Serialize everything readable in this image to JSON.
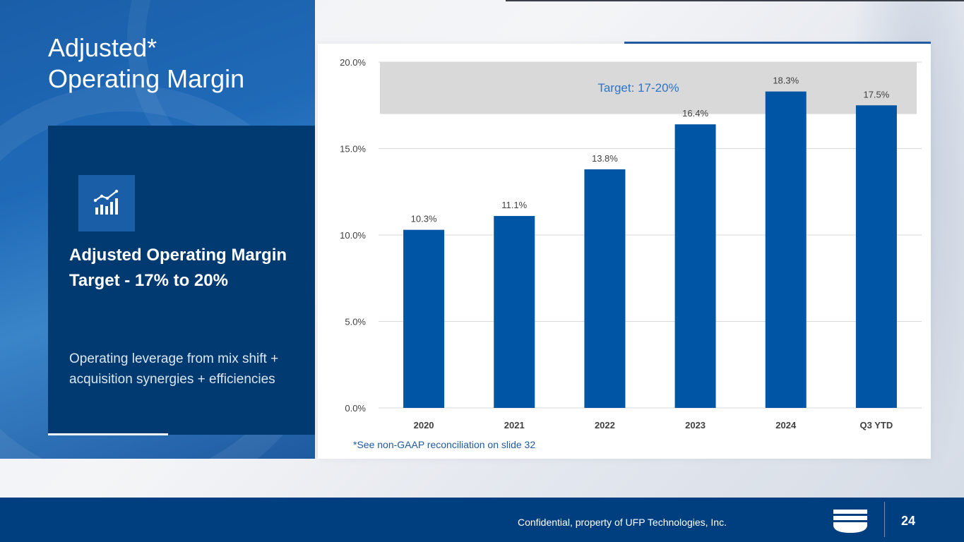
{
  "slide": {
    "title": "Adjusted*\nOperating Margin",
    "box_heading": "Adjusted Operating Margin Target - 17% to 20%",
    "box_text": "Operating leverage from mix shift + acquisition synergies + efficiencies",
    "icon": "bar-chart-trend-icon",
    "footnote": "*See non-GAAP reconciliation on slide 32"
  },
  "footer": {
    "text": "Confidential, property of UFP Technologies, Inc.",
    "page_number": "24",
    "logo": "ufp-logo-icon"
  },
  "colors": {
    "bar": "#0055a5",
    "target_band": "#d9d9d9",
    "target_label": "#2e74c7",
    "footer_bg": "#003f7f",
    "panel_dark": "#003a70"
  },
  "chart_data": {
    "type": "bar",
    "categories": [
      "2020",
      "2021",
      "2022",
      "2023",
      "2024",
      "Q3 YTD"
    ],
    "values": [
      10.3,
      11.1,
      13.8,
      16.4,
      18.3,
      17.5
    ],
    "value_labels": [
      "10.3%",
      "11.1%",
      "13.8%",
      "16.4%",
      "18.3%",
      "17.5%"
    ],
    "y_ticks": [
      0,
      5,
      10,
      15,
      20
    ],
    "y_tick_labels": [
      "0.0%",
      "5.0%",
      "10.0%",
      "15.0%",
      "20.0%"
    ],
    "ylim": [
      0,
      20
    ],
    "grid": true,
    "target_band": {
      "label": "Target: 17-20%",
      "from": 17,
      "to": 20
    }
  }
}
